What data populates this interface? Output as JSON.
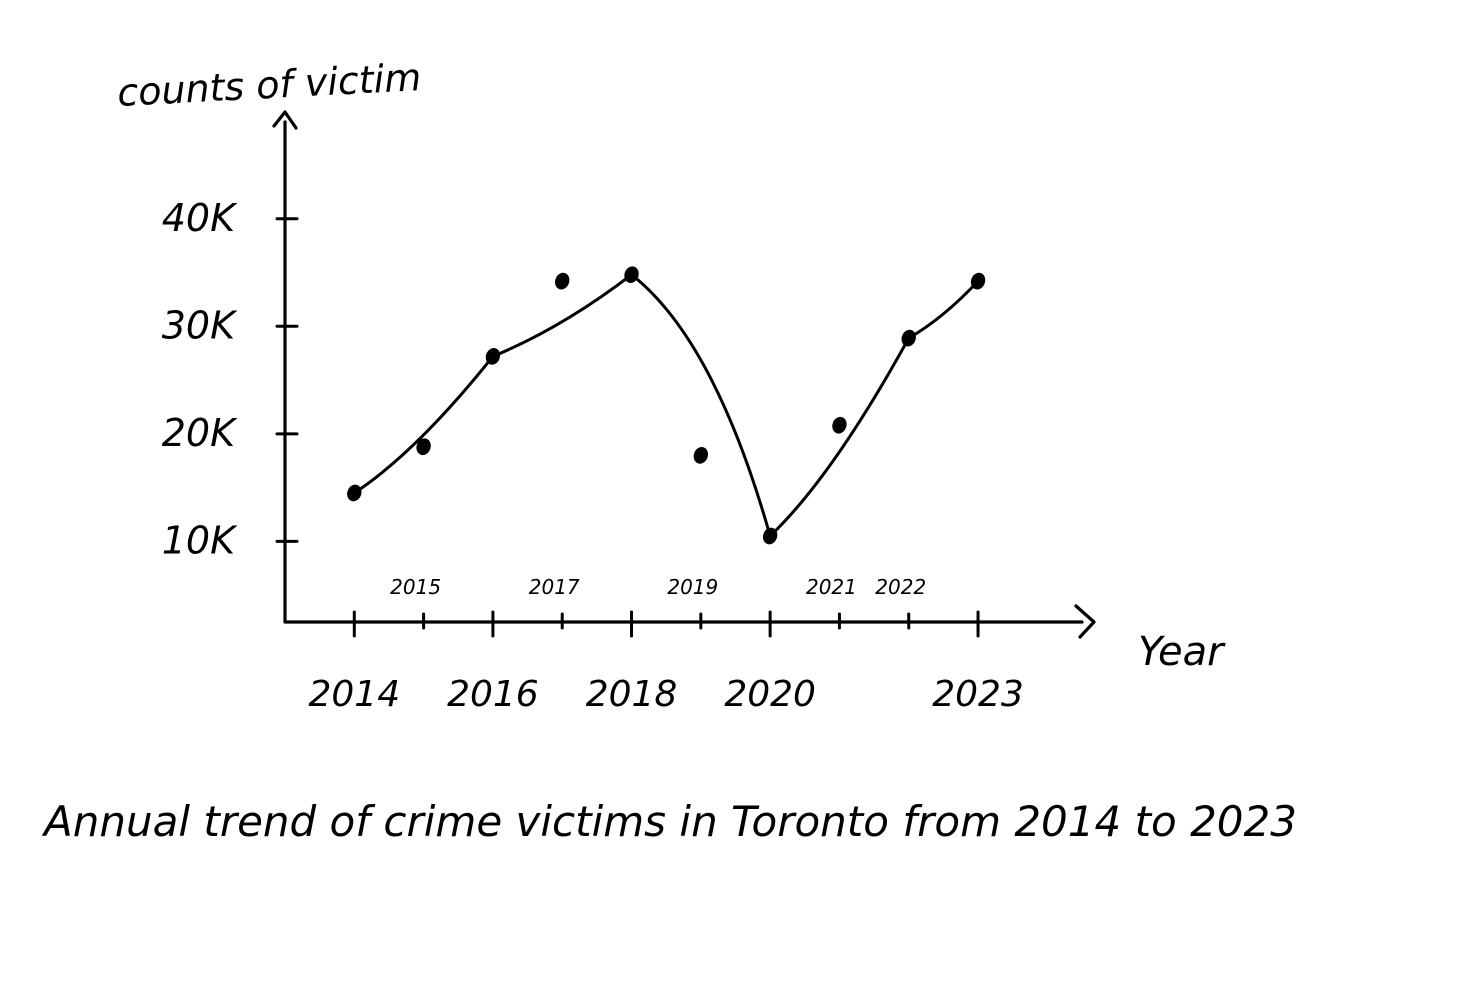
{
  "chart_data": {
    "type": "scatter",
    "title": "Annual trend of crime victims in Toronto from 2014 to 2023",
    "xlabel": "Year",
    "ylabel": "counts of victim",
    "x_major_ticks": [
      "2014",
      "2016",
      "2018",
      "2020",
      "2023"
    ],
    "x_minor_ticks": [
      "2015",
      "2017",
      "2019",
      "2021",
      "2022"
    ],
    "y_ticks": [
      "10K",
      "20K",
      "30K",
      "40K"
    ],
    "y_tick_values": [
      10000,
      20000,
      30000,
      40000
    ],
    "xlim": [
      2013,
      2024.5
    ],
    "ylim": [
      2500,
      49000
    ],
    "grid": false,
    "legend": "none",
    "series": [
      {
        "points": [
          {
            "x": 2014,
            "y": 14500
          },
          {
            "x": 2015,
            "y": 18800
          },
          {
            "x": 2016,
            "y": 27200
          },
          {
            "x": 2017,
            "y": 34200
          },
          {
            "x": 2018,
            "y": 34800
          },
          {
            "x": 2019,
            "y": 18000
          },
          {
            "x": 2020,
            "y": 10500
          },
          {
            "x": 2021,
            "y": 20800
          },
          {
            "x": 2022,
            "y": 28900
          },
          {
            "x": 2023,
            "y": 34200
          }
        ],
        "trend": [
          {
            "x": 2014,
            "y": 14500
          },
          {
            "x": 2016,
            "y": 27200
          },
          {
            "x": 2018,
            "y": 34800
          },
          {
            "x": 2020,
            "y": 10500
          },
          {
            "x": 2022,
            "y": 28900
          },
          {
            "x": 2023,
            "y": 34200
          }
        ]
      }
    ]
  }
}
